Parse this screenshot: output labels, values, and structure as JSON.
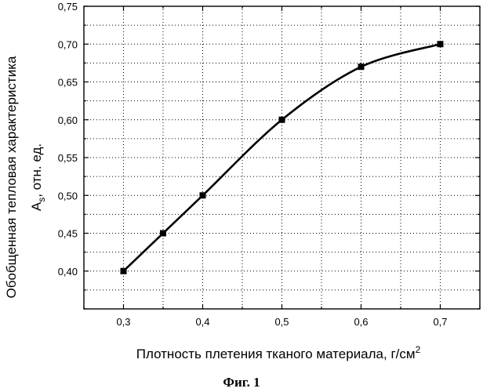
{
  "chart_data": {
    "type": "line",
    "x": [
      0.3,
      0.35,
      0.4,
      0.5,
      0.6,
      0.7
    ],
    "series": [
      {
        "values": [
          0.4,
          0.45,
          0.5,
          0.6,
          0.67,
          0.7
        ]
      }
    ],
    "xlim": [
      0.25,
      0.75
    ],
    "ylim": [
      0.35,
      0.75
    ],
    "xticks": [
      0.3,
      0.4,
      0.5,
      0.6,
      0.7
    ],
    "xtick_labels": [
      "0,3",
      "0,4",
      "0,5",
      "0,6",
      "0,7"
    ],
    "yticks": [
      0.4,
      0.45,
      0.5,
      0.55,
      0.6,
      0.65,
      0.7,
      0.75
    ],
    "ytick_labels": [
      "0,40",
      "0,45",
      "0,50",
      "0,55",
      "0,60",
      "0,65",
      "0,70",
      "0,75"
    ],
    "xlabel": "Плотность плетения тканого материала, г/см",
    "xlabel_superscript": "2",
    "ylabel_line1": "Обобщенная тепловая характеристика",
    "ylabel_line2_main": "A",
    "ylabel_line2_sub": "s",
    "ylabel_line2_rest": ", отн. ед.",
    "grid": true,
    "marker": "square",
    "line_color": "#000000"
  },
  "caption": "Фиг. 1"
}
